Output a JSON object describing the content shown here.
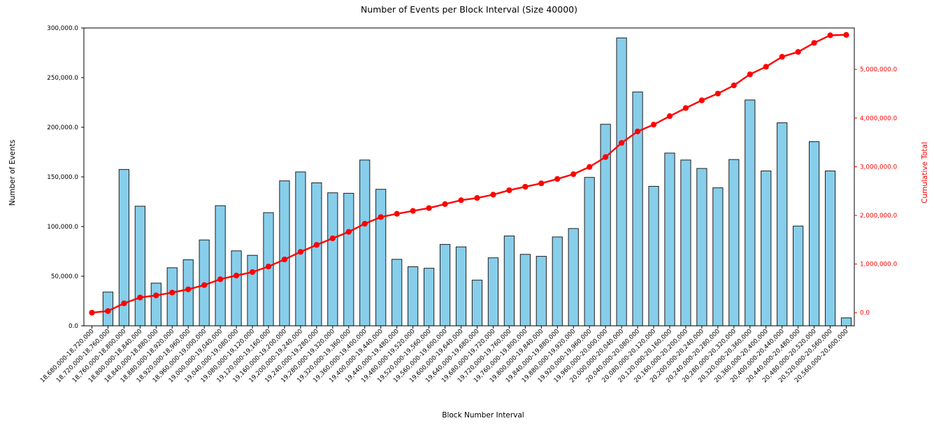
{
  "chart_data": {
    "type": "bar",
    "title": "Number of Events per Block Interval (Size 40000)",
    "xlabel": "Block Number Interval",
    "ylabel_left": "Number of Events",
    "ylabel_right": "Cumulative Total",
    "grid": false,
    "legend": null,
    "ylim_left": [
      0,
      300000
    ],
    "ylim_right": [
      -270000,
      5850000
    ],
    "yticks_left": {
      "values": [
        0,
        50000,
        100000,
        150000,
        200000,
        250000,
        300000
      ],
      "labels": [
        "0.0",
        "50,000.0",
        "100,000.0",
        "150,000.0",
        "200,000.0",
        "250,000.0",
        "300,000.0"
      ]
    },
    "yticks_right": {
      "values": [
        0,
        1000000,
        2000000,
        3000000,
        4000000,
        5000000
      ],
      "labels": [
        "0.0",
        "1,000,000.0",
        "2,000,000.0",
        "3,000,000.0",
        "4,000,000.0",
        "5,000,000.0"
      ]
    },
    "categories": [
      "18,680,000-18,720,000",
      "18,720,000-18,760,000",
      "18,760,000-18,800,000",
      "18,800,000-18,840,000",
      "18,840,000-18,880,000",
      "18,880,000-18,920,000",
      "18,920,000-18,960,000",
      "18,960,000-19,000,000",
      "19,000,000-19,040,000",
      "19,040,000-19,080,000",
      "19,080,000-19,120,000",
      "19,120,000-19,160,000",
      "19,160,000-19,200,000",
      "19,200,000-19,240,000",
      "19,240,000-19,280,000",
      "19,280,000-19,320,000",
      "19,320,000-19,360,000",
      "19,360,000-19,400,000",
      "19,400,000-19,440,000",
      "19,440,000-19,480,000",
      "19,480,000-19,520,000",
      "19,520,000-19,560,000",
      "19,560,000-19,600,000",
      "19,600,000-19,640,000",
      "19,640,000-19,680,000",
      "19,680,000-19,720,000",
      "19,720,000-19,760,000",
      "19,760,000-19,800,000",
      "19,800,000-19,840,000",
      "19,840,000-19,880,000",
      "19,880,000-19,920,000",
      "19,920,000-19,960,000",
      "19,960,000-20,000,000",
      "20,000,000-20,040,000",
      "20,040,000-20,080,000",
      "20,080,000-20,120,000",
      "20,120,000-20,160,000",
      "20,160,000-20,200,000",
      "20,200,000-20,240,000",
      "20,240,000-20,280,000",
      "20,280,000-20,320,000",
      "20,320,000-20,360,000",
      "20,360,000-20,400,000",
      "20,400,000-20,440,000",
      "20,440,000-20,480,000",
      "20,480,000-20,520,000",
      "20,520,000-20,560,000",
      "20,560,000-20,600,000"
    ],
    "series": [
      {
        "name": "Number of Events",
        "type": "bar",
        "axis": "left",
        "values": [
          0,
          34000,
          157500,
          120500,
          43000,
          58500,
          66500,
          86500,
          121000,
          75500,
          71000,
          114000,
          146000,
          155000,
          144000,
          134000,
          133500,
          167000,
          137500,
          67000,
          59500,
          58000,
          82000,
          79500,
          46000,
          68500,
          90500,
          72000,
          70000,
          89500,
          98000,
          149500,
          203000,
          290000,
          235500,
          140500,
          174000,
          167000,
          158500,
          139000,
          167500,
          227500,
          156000,
          204500,
          100500,
          185500,
          156000,
          8000
        ]
      },
      {
        "name": "Cumulative Total",
        "type": "line",
        "axis": "right",
        "values": [
          0,
          34000,
          191500,
          312000,
          355000,
          413500,
          480000,
          566500,
          687500,
          763000,
          834000,
          948000,
          1094000,
          1249000,
          1393000,
          1527000,
          1660500,
          1827500,
          1965000,
          2032000,
          2091500,
          2149500,
          2231500,
          2311000,
          2357000,
          2425500,
          2516000,
          2588000,
          2658000,
          2747500,
          2845500,
          2995000,
          3198000,
          3488000,
          3723500,
          3864000,
          4038000,
          4205000,
          4363500,
          4502500,
          4670000,
          4897500,
          5053500,
          5258000,
          5358500,
          5544000,
          5700000,
          5708000
        ]
      }
    ],
    "colors": {
      "background": "#ffffff",
      "bar_fill": "#87CEEB",
      "bar_edge": "#1f1f1f",
      "line": "#ff0000",
      "marker": "#ff0000",
      "right_axis_text": "#ff0000",
      "left_axis_text": "#000000",
      "spine": "#000000"
    }
  }
}
